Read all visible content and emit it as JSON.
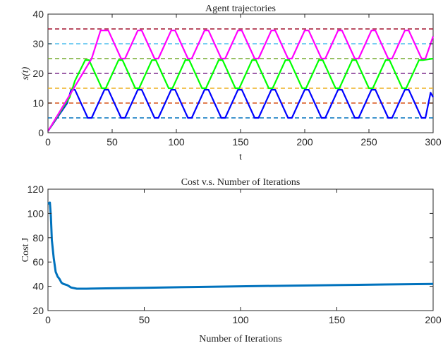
{
  "chart_data": [
    {
      "type": "line",
      "title": "Agent trajectories",
      "xlabel": "t",
      "ylabel": "s(t)",
      "xlim": [
        0,
        300
      ],
      "ylim": [
        0,
        40
      ],
      "x_ticks": [
        "0",
        "50",
        "100",
        "150",
        "200",
        "250",
        "300"
      ],
      "y_ticks": [
        "0",
        "10",
        "20",
        "30",
        "40"
      ],
      "reference_lines": [
        {
          "y": 5,
          "color": "#0072BD"
        },
        {
          "y": 10,
          "color": "#D95319"
        },
        {
          "y": 15,
          "color": "#EDB120"
        },
        {
          "y": 20,
          "color": "#7E2F8E"
        },
        {
          "y": 25,
          "color": "#77AC30"
        },
        {
          "y": 30,
          "color": "#4DBEEE"
        },
        {
          "y": 35,
          "color": "#A2142F"
        }
      ],
      "series": [
        {
          "color": "#0000FF",
          "x": [
            0,
            15,
            18,
            21,
            31,
            34,
            44,
            47,
            57,
            60,
            70,
            73,
            83,
            86,
            96,
            99,
            109,
            112,
            122,
            125,
            135,
            138,
            148,
            151,
            161,
            164,
            174,
            177,
            187,
            190,
            200,
            203,
            213,
            216,
            226,
            229,
            239,
            242,
            252,
            255,
            265,
            268,
            278,
            281,
            291,
            294,
            298,
            300
          ],
          "y": [
            0.5,
            10,
            14.5,
            14.5,
            5,
            5,
            14.5,
            14.5,
            5,
            5,
            14.5,
            14.5,
            5,
            5,
            14.5,
            14.5,
            5,
            5,
            14.5,
            14.5,
            5,
            5,
            14.5,
            14.5,
            5,
            5,
            14.5,
            14.5,
            5,
            5,
            14.5,
            14.5,
            5,
            5,
            14.5,
            14.5,
            5,
            5,
            14.5,
            14.5,
            5,
            5,
            14.5,
            14.5,
            5,
            5,
            13.5,
            12
          ]
        },
        {
          "color": "#00FF00",
          "x": [
            0,
            17,
            21,
            29,
            32,
            42,
            45,
            55,
            58,
            68,
            71,
            81,
            84,
            94,
            97,
            107,
            110,
            120,
            123,
            133,
            136,
            146,
            149,
            159,
            162,
            172,
            175,
            185,
            188,
            198,
            201,
            211,
            214,
            224,
            227,
            237,
            240,
            250,
            253,
            263,
            266,
            276,
            279,
            289,
            292,
            300
          ],
          "y": [
            0.5,
            12,
            17.5,
            24.5,
            24.5,
            15,
            15,
            24.5,
            24.5,
            15,
            15,
            24.5,
            24.5,
            15,
            15,
            24.5,
            24.5,
            15,
            15,
            24.5,
            24.5,
            15,
            15,
            24.5,
            24.5,
            15,
            15,
            24.5,
            24.5,
            15,
            15,
            24.5,
            24.5,
            15,
            15,
            24.5,
            24.5,
            15,
            15,
            24.5,
            24.5,
            15,
            15,
            24.5,
            24.5,
            25
          ]
        },
        {
          "color": "#FF00FF",
          "x": [
            0,
            34,
            41,
            47,
            57,
            60,
            70,
            73,
            83,
            86,
            96,
            99,
            109,
            112,
            122,
            125,
            135,
            138,
            148,
            151,
            161,
            164,
            174,
            177,
            187,
            190,
            200,
            203,
            213,
            216,
            226,
            229,
            239,
            242,
            252,
            255,
            265,
            268,
            278,
            281,
            291,
            294,
            300
          ],
          "y": [
            0.5,
            25,
            34.5,
            34.5,
            25,
            25,
            34.5,
            34.5,
            25,
            25,
            34.5,
            34.5,
            25,
            25,
            34.5,
            34.5,
            25,
            25,
            34.5,
            34.5,
            25,
            25,
            34.5,
            34.5,
            25,
            25,
            34.5,
            34.5,
            25,
            25,
            34.5,
            34.5,
            25,
            25,
            34.5,
            34.5,
            25,
            25,
            34.5,
            34.5,
            25,
            25,
            32.5
          ]
        }
      ]
    },
    {
      "type": "line",
      "title": "Cost v.s. Number of Iterations",
      "xlabel": "Number of Iterations",
      "ylabel": "Cost J",
      "xlim": [
        0,
        200
      ],
      "ylim": [
        20,
        120
      ],
      "x_ticks": [
        "0",
        "50",
        "100",
        "150",
        "200"
      ],
      "y_ticks": [
        "20",
        "40",
        "60",
        "80",
        "100",
        "120"
      ],
      "series": [
        {
          "color": "#0072BD",
          "x": [
            0,
            1,
            1.5,
            2,
            3,
            4,
            5,
            6,
            7,
            8,
            10,
            12,
            15,
            20,
            30,
            50,
            75,
            100,
            125,
            150,
            175,
            200
          ],
          "y": [
            108,
            109,
            98,
            78,
            63,
            52,
            48,
            46,
            43,
            42,
            41,
            39,
            38,
            38,
            38.3,
            38.8,
            39.4,
            40,
            40.5,
            41,
            41.5,
            42
          ]
        }
      ]
    }
  ]
}
